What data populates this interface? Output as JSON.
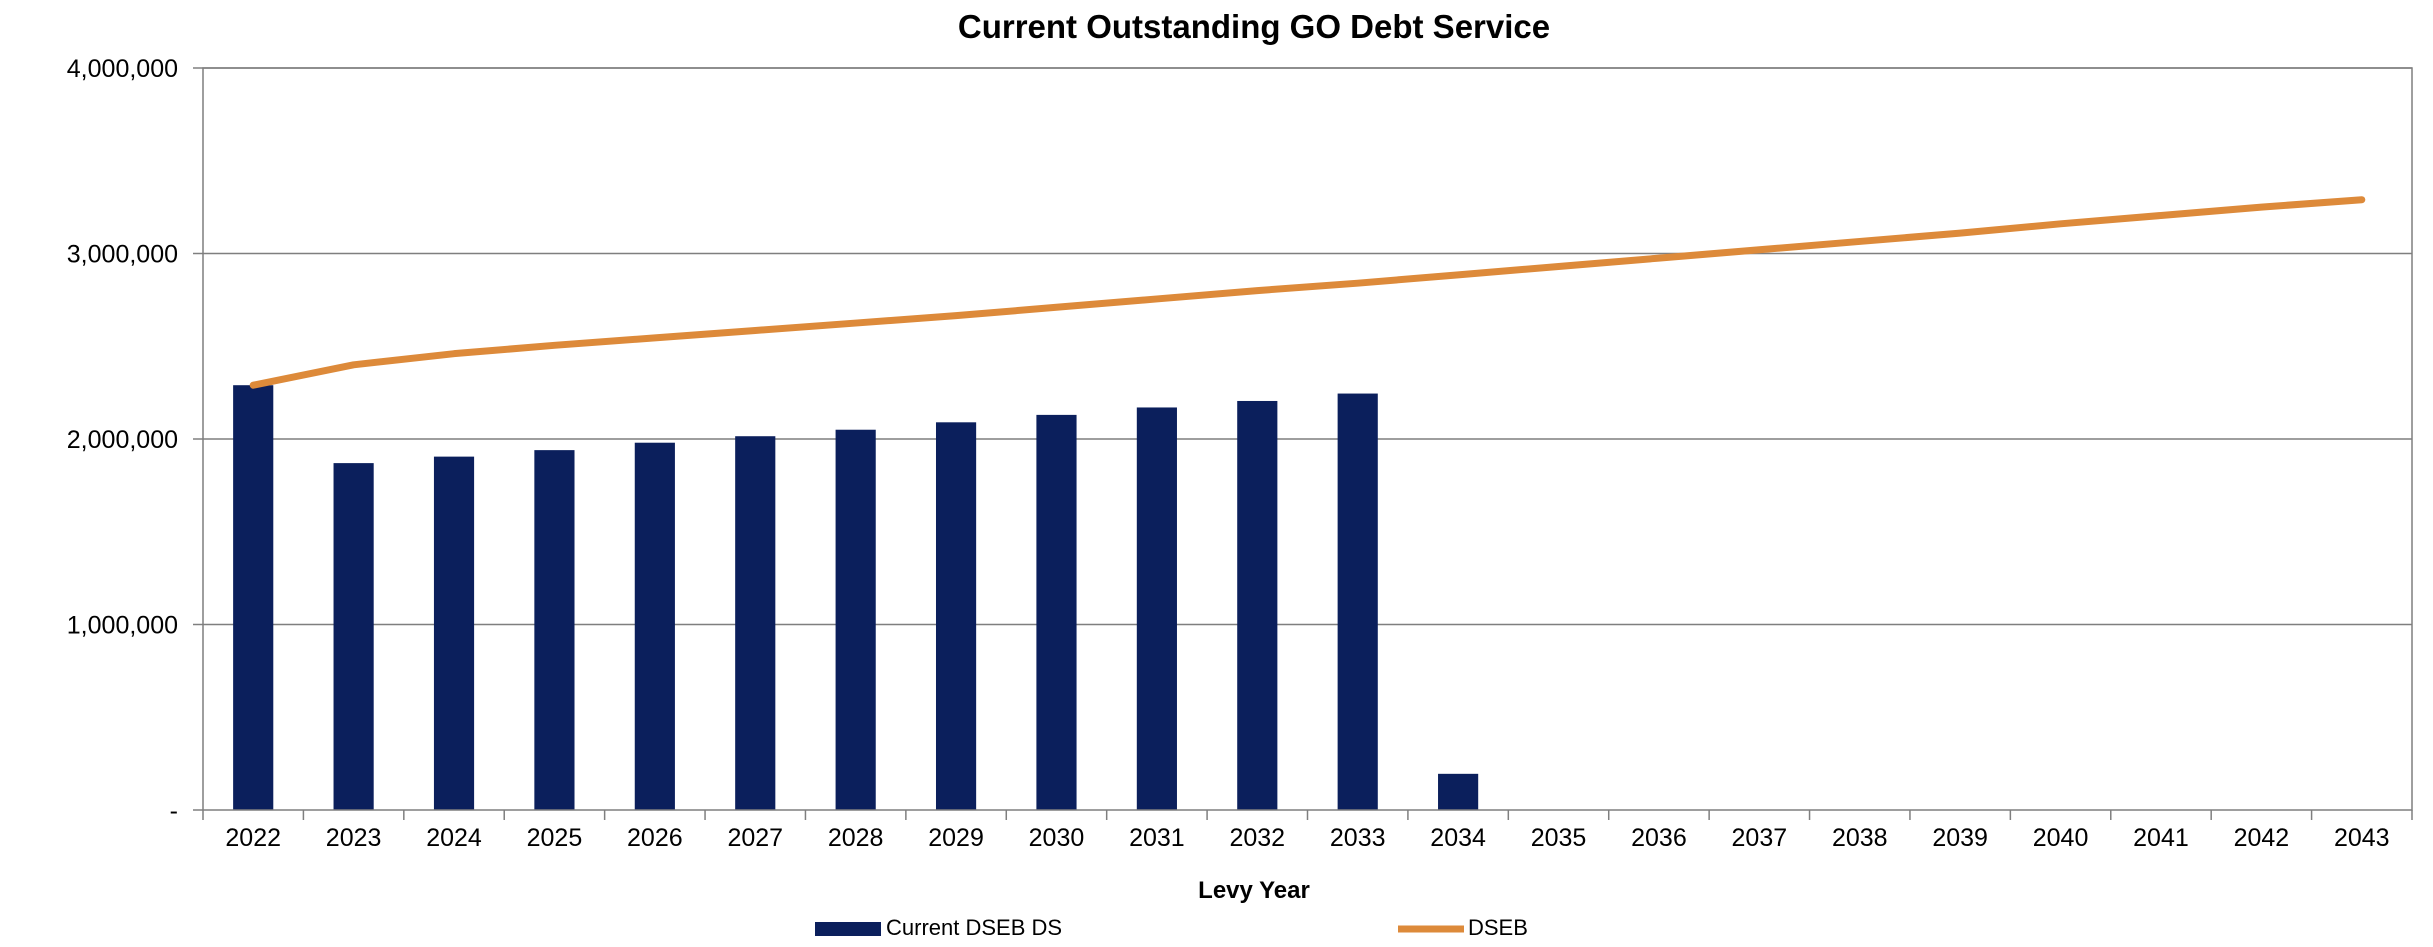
{
  "chart_data": {
    "type": "bar",
    "title": "Current Outstanding GO Debt Service",
    "xlabel": "Levy Year",
    "ylabel": "",
    "ylim": [
      0,
      4000000
    ],
    "y_ticks": [
      {
        "value": 0,
        "label": "-"
      },
      {
        "value": 1000000,
        "label": "1,000,000"
      },
      {
        "value": 2000000,
        "label": "2,000,000"
      },
      {
        "value": 3000000,
        "label": "3,000,000"
      },
      {
        "value": 4000000,
        "label": "4,000,000"
      }
    ],
    "grid": true,
    "legend_position": "bottom",
    "categories": [
      "2022",
      "2023",
      "2024",
      "2025",
      "2026",
      "2027",
      "2028",
      "2029",
      "2030",
      "2031",
      "2032",
      "2033",
      "2034",
      "2035",
      "2036",
      "2037",
      "2038",
      "2039",
      "2040",
      "2041",
      "2042",
      "2043"
    ],
    "series": [
      {
        "name": "Current DSEB DS",
        "type": "bar",
        "color": "#0b1f5c",
        "values": [
          2290000,
          1870000,
          1905000,
          1940000,
          1980000,
          2015000,
          2050000,
          2090000,
          2130000,
          2170000,
          2205000,
          2245000,
          195000,
          0,
          0,
          0,
          0,
          0,
          0,
          0,
          0,
          0
        ]
      },
      {
        "name": "DSEB",
        "type": "line",
        "color": "#dd8a3a",
        "values": [
          2290000,
          2400000,
          2460000,
          2505000,
          2545000,
          2585000,
          2625000,
          2665000,
          2710000,
          2755000,
          2800000,
          2840000,
          2885000,
          2930000,
          2975000,
          3020000,
          3065000,
          3110000,
          3160000,
          3205000,
          3250000,
          3290000
        ]
      }
    ]
  }
}
